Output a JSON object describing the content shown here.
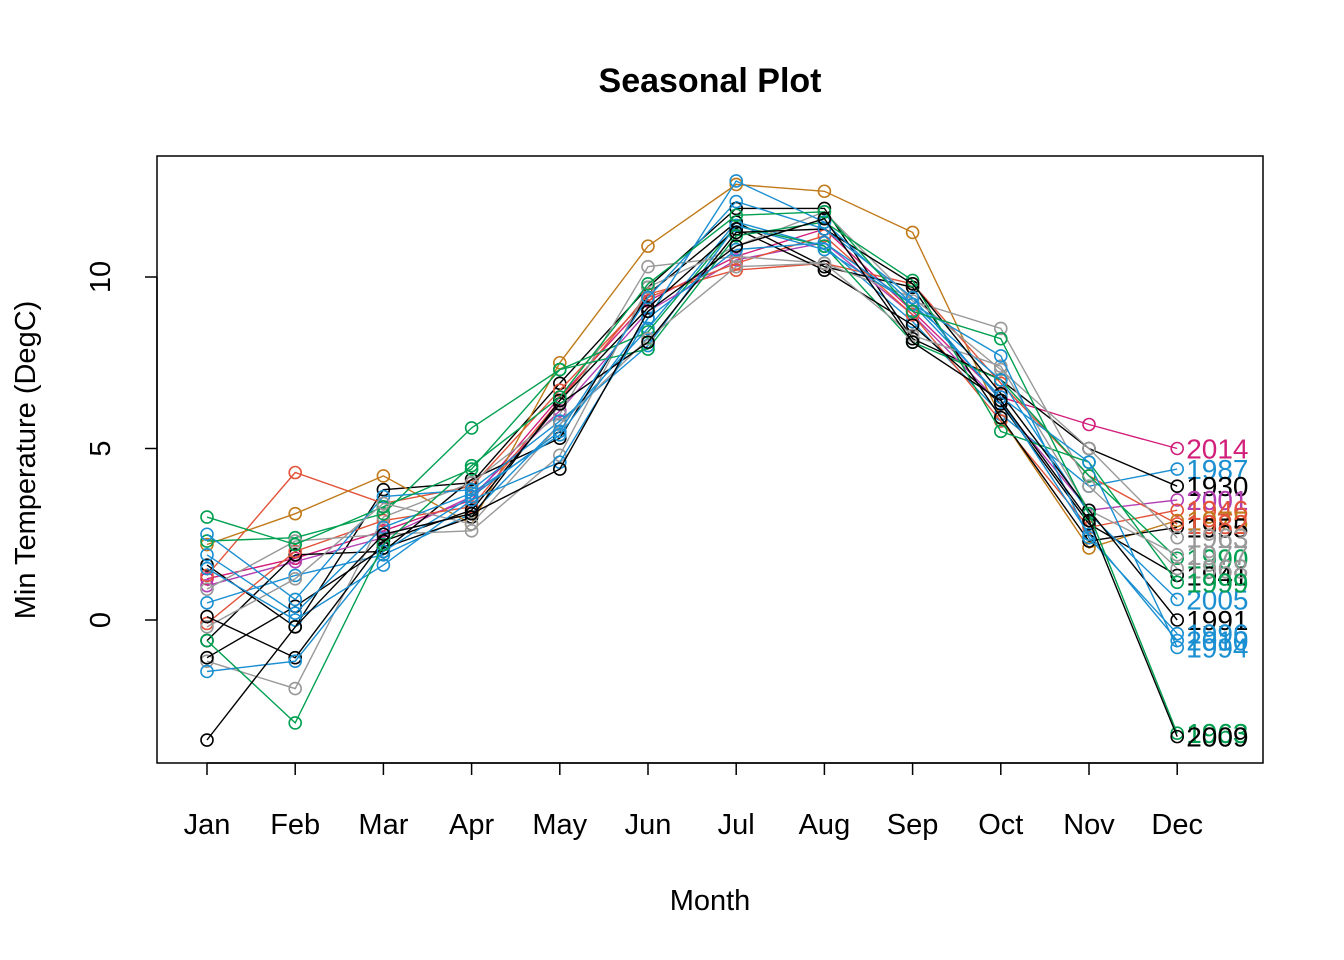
{
  "chart_data": {
    "type": "line",
    "title": "Seasonal Plot",
    "xlabel": "Month",
    "ylabel": "Min Temperature (DegC)",
    "categories": [
      "Jan",
      "Feb",
      "Mar",
      "Apr",
      "May",
      "Jun",
      "Jul",
      "Aug",
      "Sep",
      "Oct",
      "Nov",
      "Dec"
    ],
    "yticks": [
      0,
      5,
      10
    ],
    "ylim": [
      -4.1,
      13.6
    ],
    "marker": "open-circle",
    "grid": false,
    "legend": "none (year labels at end of each series)",
    "series": [
      {
        "name": "2014",
        "color": "#d11f7a",
        "values": [
          1.2,
          1.8,
          2.6,
          3.5,
          6.5,
          9.3,
          10.6,
          11.4,
          9.0,
          6.5,
          5.7,
          5.0
        ]
      },
      {
        "name": "1987",
        "color": "#1a8fd1",
        "values": [
          0.5,
          1.3,
          1.9,
          3.1,
          5.7,
          8.5,
          11.6,
          10.9,
          8.7,
          6.0,
          3.9,
          4.4
        ]
      },
      {
        "name": "1930",
        "color": "#000000",
        "values": [
          1.6,
          -0.2,
          3.8,
          4.0,
          6.9,
          9.7,
          12.0,
          12.0,
          8.2,
          7.0,
          5.0,
          3.9
        ]
      },
      {
        "name": "2001",
        "color": "#b340b3",
        "values": [
          1.0,
          1.7,
          2.4,
          3.6,
          6.1,
          9.0,
          10.5,
          11.0,
          8.9,
          6.3,
          3.2,
          3.5
        ]
      },
      {
        "name": "1946",
        "color": "#e2533a",
        "values": [
          1.3,
          4.3,
          3.4,
          3.9,
          6.7,
          9.4,
          10.4,
          11.2,
          8.9,
          5.8,
          2.7,
          3.2
        ]
      },
      {
        "name": "1975",
        "color": "#c07a1a",
        "values": [
          2.2,
          3.1,
          4.2,
          2.8,
          7.5,
          10.9,
          12.7,
          12.5,
          11.3,
          5.9,
          2.1,
          2.9
        ]
      },
      {
        "name": "1955",
        "color": "#000000",
        "values": [
          -0.6,
          1.9,
          2.0,
          4.1,
          5.3,
          9.5,
          11.6,
          10.3,
          9.7,
          5.9,
          2.3,
          2.7
        ]
      },
      {
        "name": "1982",
        "color": "#e2533a",
        "values": [
          -0.1,
          2.0,
          2.9,
          3.3,
          6.4,
          9.5,
          10.2,
          10.4,
          9.8,
          6.9,
          4.2,
          2.8
        ]
      },
      {
        "name": "1963",
        "color": "#999999",
        "values": [
          -1.2,
          -2.0,
          3.0,
          4.0,
          6.0,
          10.3,
          10.6,
          10.4,
          9.4,
          7.3,
          5.0,
          2.4
        ]
      },
      {
        "name": "1990",
        "color": "#00a050",
        "values": [
          2.3,
          2.4,
          3.1,
          5.6,
          7.3,
          8.4,
          11.5,
          10.9,
          8.1,
          7.0,
          4.2,
          1.8
        ]
      },
      {
        "name": "1941",
        "color": "#000000",
        "values": [
          -1.1,
          0.4,
          2.1,
          3.0,
          6.4,
          9.1,
          11.4,
          10.2,
          8.6,
          6.3,
          2.8,
          1.3
        ]
      },
      {
        "name": "1968",
        "color": "#999999",
        "values": [
          0.9,
          2.3,
          2.5,
          2.6,
          4.8,
          9.7,
          10.9,
          11.9,
          9.3,
          8.5,
          3.9,
          1.5
        ]
      },
      {
        "name": "2005",
        "color": "#1a8fd1",
        "values": [
          2.5,
          0.6,
          3.6,
          3.8,
          5.8,
          8.0,
          11.5,
          10.8,
          9.2,
          7.0,
          3.1,
          0.6
        ]
      },
      {
        "name": "1999",
        "color": "#00a050",
        "values": [
          3.0,
          2.2,
          3.3,
          4.4,
          7.3,
          7.9,
          11.2,
          11.6,
          9.9,
          5.5,
          4.6,
          1.1
        ]
      },
      {
        "name": "1977",
        "color": "#999999",
        "values": [
          -0.2,
          1.2,
          3.4,
          2.8,
          5.7,
          8.2,
          10.3,
          10.4,
          8.3,
          7.4,
          3.2,
          1.9
        ]
      },
      {
        "name": "1991",
        "color": "#000000",
        "values": [
          0.1,
          -1.1,
          2.3,
          3.2,
          6.3,
          8.1,
          11.3,
          11.4,
          9.8,
          6.6,
          3.2,
          0.0
        ]
      },
      {
        "name": "1996",
        "color": "#1a8fd1",
        "values": [
          1.5,
          0.0,
          1.6,
          3.5,
          4.6,
          8.8,
          10.8,
          11.0,
          9.2,
          7.7,
          2.4,
          -0.4
        ]
      },
      {
        "name": "2010",
        "color": "#1a8fd1",
        "values": [
          -1.5,
          -1.2,
          2.0,
          3.6,
          5.5,
          9.4,
          12.2,
          11.4,
          9.4,
          6.4,
          2.5,
          -0.6
        ]
      },
      {
        "name": "1994",
        "color": "#1a8fd1",
        "values": [
          1.9,
          0.2,
          2.7,
          3.7,
          5.4,
          8.8,
          12.8,
          11.6,
          9.2,
          6.5,
          4.6,
          -0.8
        ]
      },
      {
        "name": "1963",
        "color": "#00a050",
        "values": [
          -0.6,
          -3.0,
          2.2,
          4.5,
          6.5,
          9.8,
          11.8,
          11.9,
          9.0,
          8.2,
          3.1,
          -3.3
        ]
      },
      {
        "name": "2009",
        "color": "#000000",
        "values": [
          -3.5,
          -0.2,
          2.5,
          3.1,
          4.4,
          9.0,
          10.9,
          11.7,
          8.1,
          6.4,
          2.9,
          -3.4
        ]
      }
    ]
  }
}
